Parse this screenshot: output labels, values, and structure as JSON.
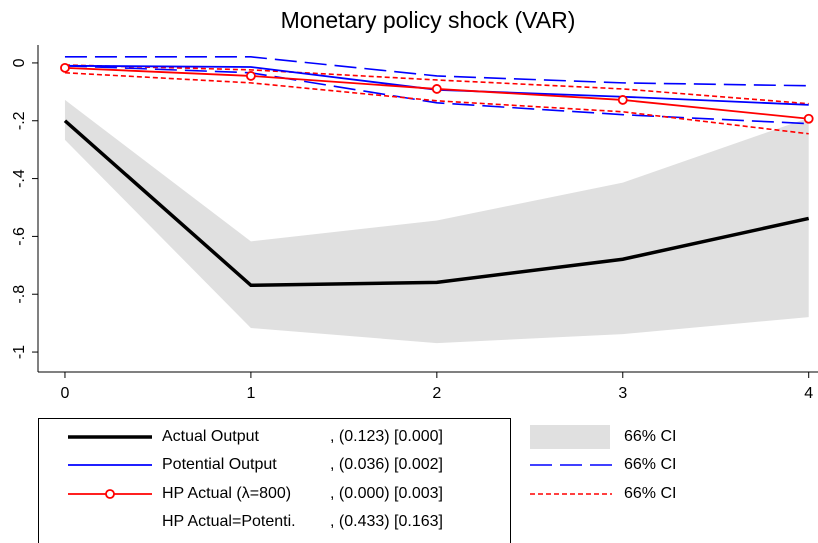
{
  "chart_data": {
    "type": "line",
    "title": "Monetary policy shock (VAR)",
    "x": [
      0,
      1,
      2,
      3,
      4
    ],
    "xlim": [
      -0.145,
      4.05
    ],
    "xticks": [
      0,
      1,
      2,
      3,
      4
    ],
    "ylim": [
      -1.069,
      0.062
    ],
    "yticks": [
      0,
      {
        "value": -0.2,
        "label": "-.2"
      },
      {
        "value": -0.4,
        "label": "-.4"
      },
      {
        "value": -0.6,
        "label": "-.6"
      },
      {
        "value": -0.8,
        "label": "-.8"
      },
      -1
    ],
    "series": [
      {
        "name": "Actual Output",
        "note": ", (0.123) [0.000]",
        "color": "#000000",
        "values": [
          -0.2,
          -0.769,
          -0.759,
          -0.679,
          -0.538
        ]
      },
      {
        "name": "Potential Output",
        "note": ", (0.036) [0.002]",
        "color": "#0000ff",
        "values": [
          -0.01,
          -0.014,
          -0.093,
          -0.117,
          -0.145
        ]
      },
      {
        "name": "HP Actual (λ=800)",
        "note": ", (0.000) [0.003]",
        "color": "#ff0000",
        "markers": true,
        "values": [
          -0.017,
          -0.045,
          -0.09,
          -0.128,
          -0.193
        ]
      }
    ],
    "intervals": [
      {
        "name": "66% CI",
        "style": "band",
        "color": "#e0e0e0",
        "lower": [
          -0.266,
          -0.917,
          -0.969,
          -0.938,
          -0.879
        ],
        "upper": [
          -0.128,
          -0.617,
          -0.545,
          -0.414,
          -0.19
        ]
      },
      {
        "name": "66% CI",
        "style": "longdash",
        "color": "#0000ff",
        "lower": [
          -0.01,
          -0.034,
          -0.138,
          -0.179,
          -0.21
        ],
        "upper": [
          0.021,
          0.021,
          -0.045,
          -0.069,
          -0.079
        ]
      },
      {
        "name": "66% CI",
        "style": "shortdash",
        "color": "#ff0000",
        "lower": [
          -0.034,
          -0.069,
          -0.131,
          -0.169,
          -0.245
        ],
        "upper": [
          -0.007,
          -0.024,
          -0.059,
          -0.09,
          -0.141
        ]
      }
    ],
    "legend_extra": {
      "name": "HP Actual=Potenti.",
      "note": ", (0.433) [0.163]"
    }
  }
}
